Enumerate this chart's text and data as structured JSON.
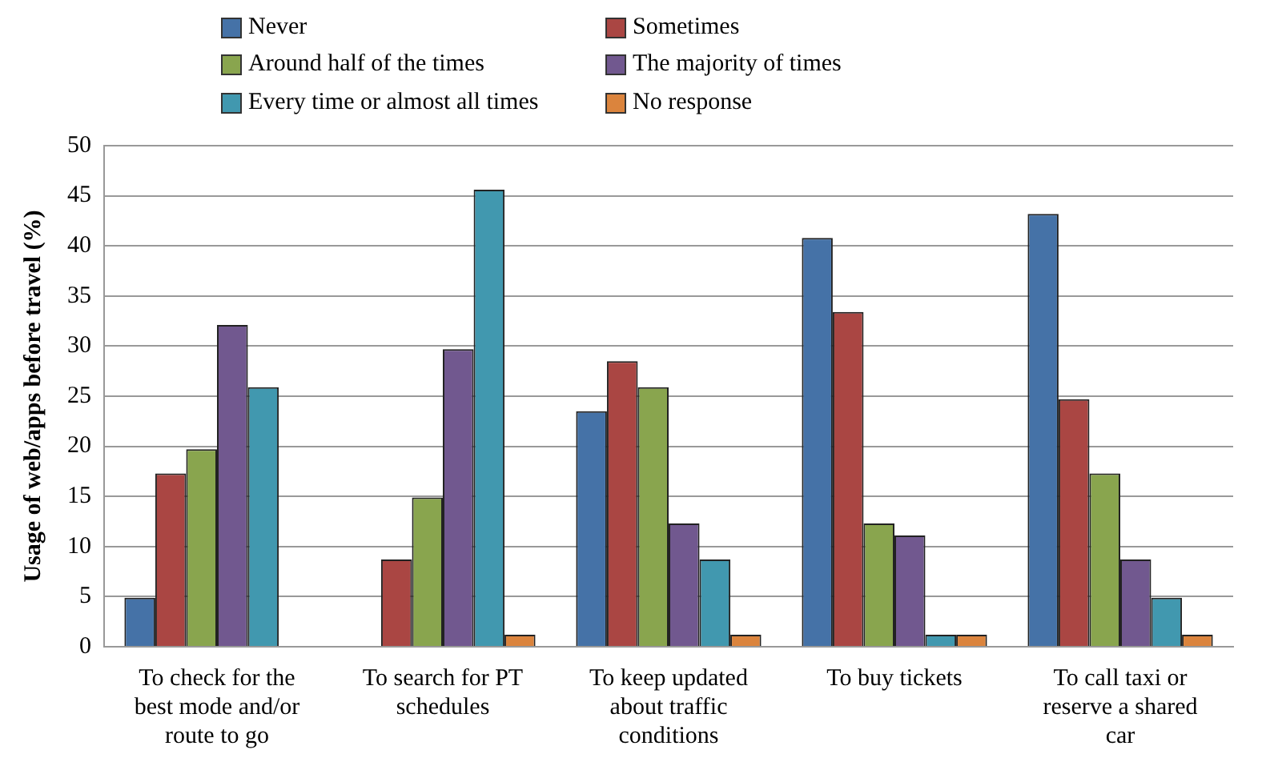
{
  "chart_data": {
    "type": "bar",
    "ylabel": "Usage of web/apps before travel (%)",
    "categories": [
      "To check for the best mode and/or route to go",
      "To search for PT schedules",
      "To keep updated about traffic conditions",
      "To buy tickets",
      "To call taxi or reserve a shared car"
    ],
    "series": [
      {
        "name": "Never",
        "color": "#4572a7",
        "values": [
          4.9,
          0,
          23.5,
          40.8,
          43.2
        ]
      },
      {
        "name": "Sometimes",
        "color": "#aa4643",
        "values": [
          17.3,
          8.7,
          28.5,
          33.4,
          24.7
        ]
      },
      {
        "name": "Around half of the times",
        "color": "#89a54e",
        "values": [
          19.7,
          14.9,
          25.9,
          12.3,
          17.3
        ]
      },
      {
        "name": "The majority of times",
        "color": "#71588f",
        "values": [
          32.1,
          29.7,
          12.3,
          11.1,
          8.7
        ]
      },
      {
        "name": "Every time or almost all times",
        "color": "#4198af",
        "values": [
          25.9,
          45.6,
          8.7,
          1.2,
          4.9
        ]
      },
      {
        "name": "No response",
        "color": "#db843d",
        "values": [
          0,
          1.2,
          1.2,
          1.2,
          1.2
        ]
      }
    ],
    "ylim": [
      0,
      50
    ],
    "yticks": [
      0,
      5,
      10,
      15,
      20,
      25,
      30,
      35,
      40,
      45,
      50
    ],
    "grid": "y",
    "legend": "top"
  }
}
